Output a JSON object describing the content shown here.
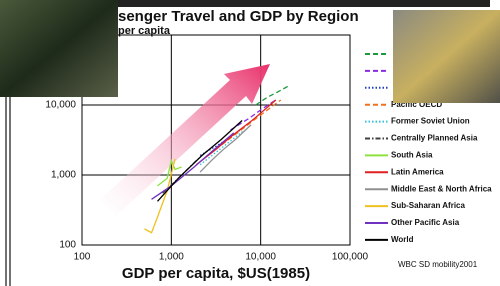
{
  "chart_data": {
    "type": "line",
    "title": "senger Travel and GDP by Region",
    "subtitle": "per capita",
    "x_label": "GDP per capita, $US(1985)",
    "source": "WBC SD mobility2001",
    "log_x": true,
    "log_y": true,
    "grid": true,
    "xlim": [
      100,
      100000
    ],
    "ylim": [
      100,
      100000
    ],
    "xticks": [
      100,
      {
        "value": 1000,
        "label": "1,000"
      },
      {
        "value": 10000,
        "label": "10,000"
      },
      {
        "value": 100000,
        "label": "100,000"
      }
    ],
    "yticks": [
      100,
      {
        "value": 1000,
        "label": "1,000"
      },
      {
        "value": 10000,
        "label": "10,000"
      }
    ],
    "series": [
      {
        "name": null,
        "color": "#1e9a3c",
        "dash": "dashed",
        "x": [
          8800,
          12000,
          15000,
          21000
        ],
        "values": [
          10000,
          13000,
          15000,
          19000
        ]
      },
      {
        "name": null,
        "color": "#8a2be2",
        "dash": "dashed",
        "x": [
          4600,
          7500,
          10000,
          14800
        ],
        "values": [
          4400,
          6500,
          8500,
          11800
        ]
      },
      {
        "name": null,
        "color": "#1f3fbf",
        "dash": "dotted",
        "x": [
          2100,
          3200,
          4500,
          5900
        ],
        "values": [
          1900,
          2600,
          3400,
          4400
        ]
      },
      {
        "name": "Pacific OECD",
        "color": "#f07020",
        "dash": "dashed",
        "x": [
          3100,
          5500,
          9000,
          16800
        ],
        "values": [
          2300,
          4000,
          6500,
          11800
        ]
      },
      {
        "name": "Former Soviet Union",
        "color": "#30c0e0",
        "dash": "dotted",
        "x": [
          2100,
          3000,
          4200,
          6600
        ],
        "values": [
          1400,
          2000,
          2800,
          4400
        ]
      },
      {
        "name": "Centrally Planned Asia",
        "color": "#404040",
        "dash": "dashdot",
        "x": [
          800,
          1200,
          1800,
          2600
        ],
        "values": [
          550,
          900,
          1500,
          2300
        ]
      },
      {
        "name": "South Asia",
        "color": "#90e040",
        "dash": "solid",
        "x": [
          700,
          900,
          1000,
          1100,
          1300
        ],
        "values": [
          700,
          900,
          1600,
          1200,
          1300
        ]
      },
      {
        "name": "Latin America",
        "color": "#e02020",
        "dash": "solid",
        "x": [
          1900,
          3000,
          5000,
          8000,
          14800
        ],
        "values": [
          1400,
          2200,
          3800,
          6000,
          11800
        ]
      },
      {
        "name": "Middle East & North Africa",
        "color": "#909090",
        "dash": "solid",
        "x": [
          2100,
          2800,
          3800,
          5200,
          7800
        ],
        "values": [
          1100,
          1600,
          2300,
          3200,
          5200
        ]
      },
      {
        "name": "Sub-Saharan Africa",
        "color": "#f0c020",
        "dash": "solid",
        "x": [
          500,
          600,
          700,
          900,
          1100
        ],
        "values": [
          170,
          150,
          250,
          600,
          1700
        ]
      },
      {
        "name": "Other Pacific Asia",
        "color": "#7030c0",
        "dash": "solid",
        "x": [
          600,
          1000,
          1800,
          3000,
          5000
        ],
        "values": [
          450,
          700,
          1300,
          2300,
          4000
        ]
      },
      {
        "name": "World",
        "color": "#000000",
        "dash": "solid",
        "x": [
          700,
          1200,
          2200,
          3600,
          6200
        ],
        "values": [
          420,
          900,
          1900,
          3200,
          6000
        ]
      }
    ],
    "legend": "right"
  }
}
